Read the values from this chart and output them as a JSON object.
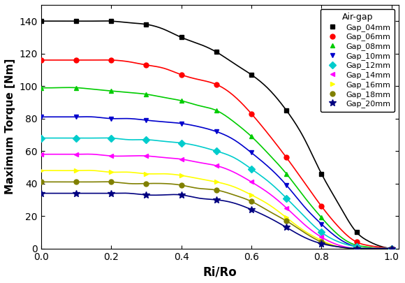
{
  "title": "",
  "xlabel": "Ri/Ro",
  "ylabel": "Maximum Torque [Nm]",
  "xlim": [
    0.0,
    1.02
  ],
  "ylim": [
    0,
    150
  ],
  "yticks": [
    0,
    20,
    40,
    60,
    80,
    100,
    120,
    140
  ],
  "xticks": [
    0.0,
    0.2,
    0.4,
    0.6,
    0.8,
    1.0
  ],
  "legend_title": "Air-gap",
  "series": [
    {
      "label": "Gap_04mm",
      "color": "#000000",
      "marker": "s",
      "x_values": [
        0.0,
        0.05,
        0.1,
        0.15,
        0.2,
        0.25,
        0.3,
        0.35,
        0.4,
        0.45,
        0.5,
        0.55,
        0.6,
        0.65,
        0.7,
        0.75,
        0.8,
        0.85,
        0.9,
        0.93,
        0.96,
        1.0
      ],
      "y_values": [
        140,
        140,
        140,
        140,
        140,
        139,
        138,
        135,
        130,
        126,
        121,
        114,
        107,
        98,
        85,
        68,
        46,
        27,
        10,
        5,
        2,
        0
      ]
    },
    {
      "label": "Gap_06mm",
      "color": "#ff0000",
      "marker": "o",
      "x_values": [
        0.0,
        0.05,
        0.1,
        0.15,
        0.2,
        0.25,
        0.3,
        0.35,
        0.4,
        0.45,
        0.5,
        0.55,
        0.6,
        0.65,
        0.7,
        0.75,
        0.8,
        0.85,
        0.9,
        0.93,
        0.96,
        1.0
      ],
      "y_values": [
        116,
        116,
        116,
        116,
        116,
        115,
        113,
        111,
        107,
        104,
        101,
        94,
        83,
        70,
        56,
        41,
        26,
        13,
        4,
        2,
        1,
        0
      ]
    },
    {
      "label": "Gap_08mm",
      "color": "#00cc00",
      "marker": "^",
      "x_values": [
        0.0,
        0.05,
        0.1,
        0.15,
        0.2,
        0.25,
        0.3,
        0.35,
        0.4,
        0.45,
        0.5,
        0.55,
        0.6,
        0.65,
        0.7,
        0.75,
        0.8,
        0.85,
        0.9,
        0.93,
        0.96,
        1.0
      ],
      "y_values": [
        99,
        99,
        99,
        98,
        97,
        96,
        95,
        93,
        91,
        88,
        85,
        78,
        69,
        58,
        46,
        32,
        19,
        8,
        2,
        1,
        0,
        0
      ]
    },
    {
      "label": "Gap_10mm",
      "color": "#0000cc",
      "marker": "v",
      "x_values": [
        0.0,
        0.05,
        0.1,
        0.15,
        0.2,
        0.25,
        0.3,
        0.35,
        0.4,
        0.45,
        0.5,
        0.55,
        0.6,
        0.65,
        0.7,
        0.75,
        0.8,
        0.85,
        0.9,
        0.93,
        0.96,
        1.0
      ],
      "y_values": [
        81,
        81,
        81,
        81,
        80,
        80,
        79,
        78,
        77,
        75,
        72,
        67,
        59,
        50,
        39,
        26,
        15,
        6,
        1,
        0,
        0,
        0
      ]
    },
    {
      "label": "Gap_12mm",
      "color": "#00cccc",
      "marker": "D",
      "x_values": [
        0.0,
        0.05,
        0.1,
        0.15,
        0.2,
        0.25,
        0.3,
        0.35,
        0.4,
        0.45,
        0.5,
        0.55,
        0.6,
        0.65,
        0.7,
        0.75,
        0.8,
        0.85,
        0.9,
        0.93,
        0.96,
        1.0
      ],
      "y_values": [
        68,
        68,
        68,
        68,
        68,
        67,
        67,
        66,
        65,
        63,
        60,
        56,
        49,
        41,
        31,
        20,
        10,
        4,
        1,
        0,
        0,
        0
      ]
    },
    {
      "label": "Gap_14mm",
      "color": "#ff00ff",
      "marker": "<",
      "x_values": [
        0.0,
        0.05,
        0.1,
        0.15,
        0.2,
        0.25,
        0.3,
        0.35,
        0.4,
        0.45,
        0.5,
        0.55,
        0.6,
        0.65,
        0.7,
        0.75,
        0.8,
        0.85,
        0.9,
        0.93,
        0.96,
        1.0
      ],
      "y_values": [
        58,
        58,
        58,
        58,
        57,
        57,
        57,
        56,
        55,
        53,
        51,
        47,
        41,
        34,
        25,
        15,
        7,
        2,
        0,
        0,
        0,
        0
      ]
    },
    {
      "label": "Gap_16mm",
      "color": "#ffff00",
      "marker": ">",
      "x_values": [
        0.0,
        0.05,
        0.1,
        0.15,
        0.2,
        0.25,
        0.3,
        0.35,
        0.4,
        0.45,
        0.5,
        0.55,
        0.6,
        0.65,
        0.7,
        0.75,
        0.8,
        0.85,
        0.9,
        0.93,
        0.96,
        1.0
      ],
      "y_values": [
        48,
        48,
        48,
        48,
        47,
        47,
        46,
        46,
        45,
        43,
        41,
        38,
        33,
        27,
        19,
        11,
        5,
        1,
        0,
        0,
        0,
        0
      ]
    },
    {
      "label": "Gap_18mm",
      "color": "#808000",
      "marker": "o",
      "x_values": [
        0.0,
        0.05,
        0.1,
        0.15,
        0.2,
        0.25,
        0.3,
        0.35,
        0.4,
        0.45,
        0.5,
        0.55,
        0.6,
        0.65,
        0.7,
        0.75,
        0.8,
        0.85,
        0.9,
        0.93,
        0.96,
        1.0
      ],
      "y_values": [
        41,
        41,
        41,
        41,
        41,
        40,
        40,
        40,
        39,
        37,
        36,
        33,
        29,
        23,
        17,
        10,
        4,
        1,
        0,
        0,
        0,
        0
      ]
    },
    {
      "label": "Gap_20mm",
      "color": "#000080",
      "marker": "*",
      "x_values": [
        0.0,
        0.05,
        0.1,
        0.15,
        0.2,
        0.25,
        0.3,
        0.35,
        0.4,
        0.45,
        0.5,
        0.55,
        0.6,
        0.65,
        0.7,
        0.75,
        0.8,
        0.85,
        0.9,
        0.93,
        0.96,
        1.0
      ],
      "y_values": [
        34,
        34,
        34,
        34,
        34,
        34,
        33,
        33,
        33,
        31,
        30,
        28,
        24,
        19,
        13,
        7,
        3,
        1,
        0,
        0,
        0,
        0
      ]
    }
  ],
  "marker_x_values": [
    0.0,
    0.1,
    0.2,
    0.3,
    0.4,
    0.5,
    0.6,
    0.7,
    0.8,
    0.9,
    1.0
  ]
}
